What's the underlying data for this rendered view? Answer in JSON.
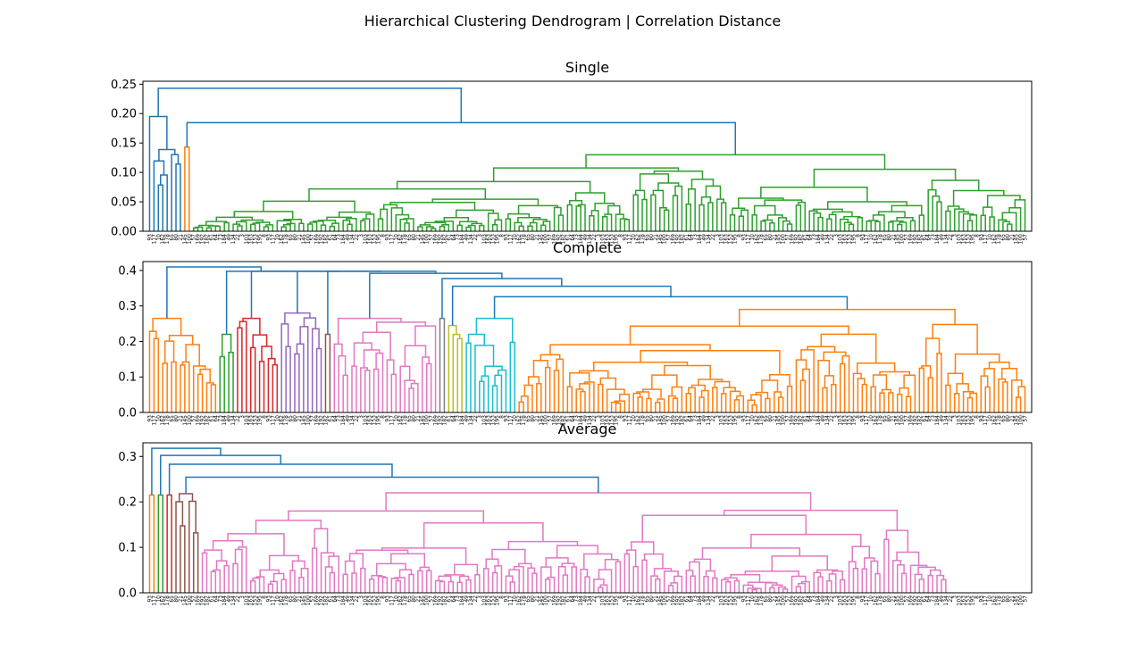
{
  "figure": {
    "title": "Hierarchical Clustering Dendrogram | Correlation Distance"
  },
  "chart_data": [
    {
      "type": "dendrogram",
      "title": "Single",
      "ylim": [
        0,
        0.255
      ],
      "yticks": [
        "0.00",
        "0.05",
        "0.10",
        "0.15",
        "0.20",
        "0.25"
      ],
      "ytick_values": [
        0,
        0.05,
        0.1,
        0.15,
        0.2,
        0.25
      ],
      "leaf_count": 200,
      "root_height": 0.243,
      "clusters": [
        {
          "color": "#1f77b4",
          "leaves": 8,
          "top": 0.195
        },
        {
          "color": "#ff7f0e",
          "leaves": 2,
          "top": 0.143
        },
        {
          "color": "#2ca02c",
          "leaves": 190,
          "top": 0.13
        }
      ],
      "leaf_labels_sample": [
        "93",
        "117",
        "10",
        "162",
        "178",
        "65",
        "80",
        "21",
        "145",
        "100",
        "57",
        "169",
        "192",
        "182",
        "61",
        "64",
        "73",
        "184",
        "49",
        "134",
        "22",
        "3",
        "103",
        "163",
        "153",
        "195",
        "8"
      ]
    },
    {
      "type": "dendrogram",
      "title": "Complete",
      "ylim": [
        0,
        0.425
      ],
      "yticks": [
        "0.0",
        "0.1",
        "0.2",
        "0.3",
        "0.4"
      ],
      "ytick_values": [
        0,
        0.1,
        0.2,
        0.3,
        0.4
      ],
      "leaf_count": 200,
      "root_height": 0.41,
      "clusters": [
        {
          "color": "#ff7f0e",
          "leaves": 16,
          "top": 0.265
        },
        {
          "color": "#2ca02c",
          "leaves": 4,
          "top": 0.22
        },
        {
          "color": "#d62728",
          "leaves": 10,
          "top": 0.265
        },
        {
          "color": "#9467bd",
          "leaves": 10,
          "top": 0.28
        },
        {
          "color": "#8c564b",
          "leaves": 2,
          "top": 0.22
        },
        {
          "color": "#e377c2",
          "leaves": 24,
          "top": 0.265
        },
        {
          "color": "#7f7f7f",
          "leaves": 2,
          "top": 0.265
        },
        {
          "color": "#bcbd22",
          "leaves": 4,
          "top": 0.245
        },
        {
          "color": "#17becf",
          "leaves": 12,
          "top": 0.265
        },
        {
          "color": "#ff7f0e",
          "leaves": 116,
          "top": 0.29
        }
      ],
      "leaf_labels_sample": [
        "93",
        "117",
        "10",
        "162",
        "178",
        "65",
        "80",
        "21",
        "145",
        "100",
        "57",
        "169",
        "192",
        "182",
        "61",
        "64",
        "73",
        "184",
        "49",
        "134",
        "22",
        "3",
        "103",
        "163",
        "153",
        "195",
        "8"
      ]
    },
    {
      "type": "dendrogram",
      "title": "Average",
      "ylim": [
        0,
        0.33
      ],
      "yticks": [
        "0.0",
        "0.1",
        "0.2",
        "0.3"
      ],
      "ytick_values": [
        0,
        0.1,
        0.2,
        0.3
      ],
      "leaf_count": 200,
      "root_height": 0.318,
      "clusters": [
        {
          "color": "#ff7f0e",
          "leaves": 2,
          "top": 0.215
        },
        {
          "color": "#2ca02c",
          "leaves": 2,
          "top": 0.215
        },
        {
          "color": "#d62728",
          "leaves": 2,
          "top": 0.215
        },
        {
          "color": "#8c564b",
          "leaves": 6,
          "top": 0.218
        },
        {
          "color": "#e377c2",
          "leaves": 170,
          "top": 0.22
        }
      ],
      "leaf_labels_sample": [
        "93",
        "117",
        "10",
        "162",
        "178",
        "65",
        "80",
        "21",
        "145",
        "100",
        "57",
        "169",
        "192",
        "182",
        "61",
        "64",
        "73",
        "184",
        "49",
        "134",
        "22",
        "3",
        "103",
        "163",
        "153",
        "195",
        "8"
      ]
    }
  ]
}
